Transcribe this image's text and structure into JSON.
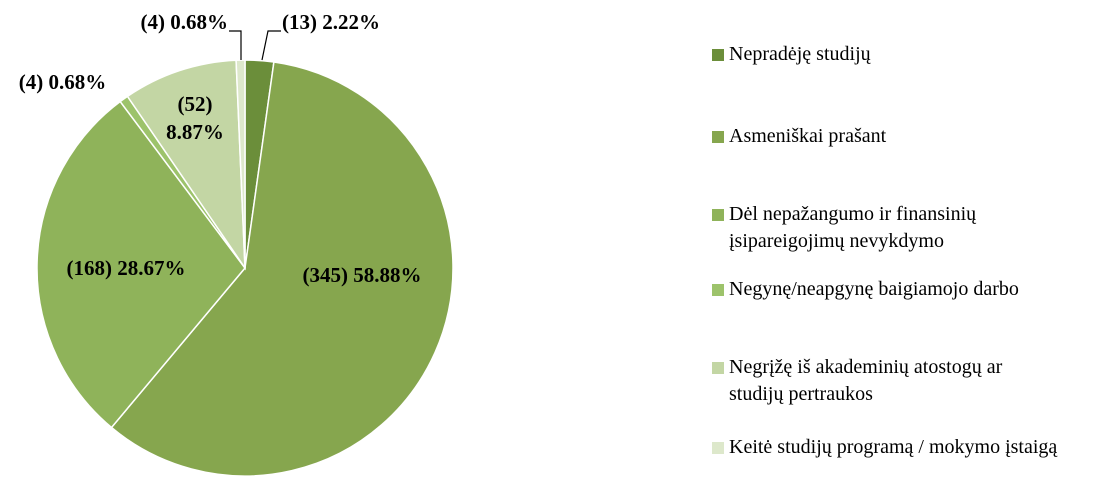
{
  "chart_data": {
    "type": "pie",
    "categories": [
      "Nepradėję studijų",
      "Asmeniškai prašant",
      "Dėl nepažangumo ir finansinių įsipareigojimų nevykdymo",
      "Negynę/neapgynę baigiamojo darbo",
      "Negrįžę iš akademinių atostogų ar studijų pertraukos",
      "Keitė studijų programą / mokymo įstaigą"
    ],
    "values": [
      13,
      345,
      168,
      4,
      52,
      4
    ],
    "value_labels": [
      "(13) 2.22%",
      "(345) 58.88%",
      "(168) 28.67%",
      "(4) 0.68%",
      "(52) 8.87%",
      "(4) 0.68%"
    ],
    "colors": [
      "#6b8e3a",
      "#86a64e",
      "#8fb35a",
      "#9dc36b",
      "#c3d6a4",
      "#dde8cb"
    ]
  }
}
